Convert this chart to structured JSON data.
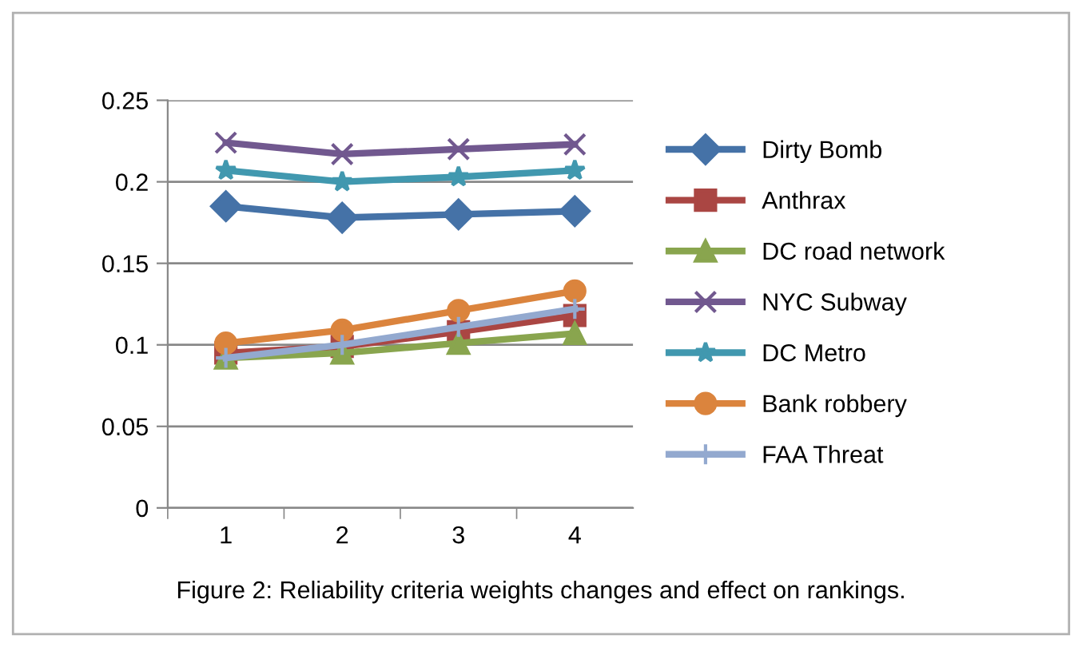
{
  "chart_data": {
    "type": "line",
    "categories": [
      "1",
      "2",
      "3",
      "4"
    ],
    "series": [
      {
        "name": "Dirty Bomb",
        "color": "#4572a7",
        "marker": "diamond",
        "values": [
          0.185,
          0.178,
          0.18,
          0.182
        ]
      },
      {
        "name": "Anthrax",
        "color": "#aa4643",
        "marker": "square",
        "values": [
          0.095,
          0.099,
          0.108,
          0.118
        ]
      },
      {
        "name": "DC road network",
        "color": "#89a54e",
        "marker": "triangle",
        "values": [
          0.092,
          0.095,
          0.101,
          0.107
        ]
      },
      {
        "name": "NYC Subway",
        "color": "#71588f",
        "marker": "cross",
        "values": [
          0.224,
          0.217,
          0.22,
          0.223
        ]
      },
      {
        "name": "DC Metro",
        "color": "#4198af",
        "marker": "star",
        "values": [
          0.207,
          0.2,
          0.203,
          0.207
        ]
      },
      {
        "name": "Bank robbery",
        "color": "#db843d",
        "marker": "circle",
        "values": [
          0.101,
          0.109,
          0.121,
          0.133
        ]
      },
      {
        "name": "FAA Threat",
        "color": "#93a9cf",
        "marker": "plus",
        "values": [
          0.092,
          0.1,
          0.111,
          0.122
        ]
      }
    ],
    "ylim": [
      0,
      0.25
    ],
    "yticks": [
      {
        "value": 0,
        "label": "0"
      },
      {
        "value": 0.05,
        "label": "0.05"
      },
      {
        "value": 0.1,
        "label": "0.1"
      },
      {
        "value": 0.15,
        "label": "0.15"
      },
      {
        "value": 0.2,
        "label": "0.2"
      },
      {
        "value": 0.25,
        "label": "0.25"
      }
    ],
    "grid": "y",
    "legend": "right",
    "line_style": "solid",
    "annotations": [
      "Figure 2: Reliability criteria weights changes and effect on rankings."
    ]
  }
}
